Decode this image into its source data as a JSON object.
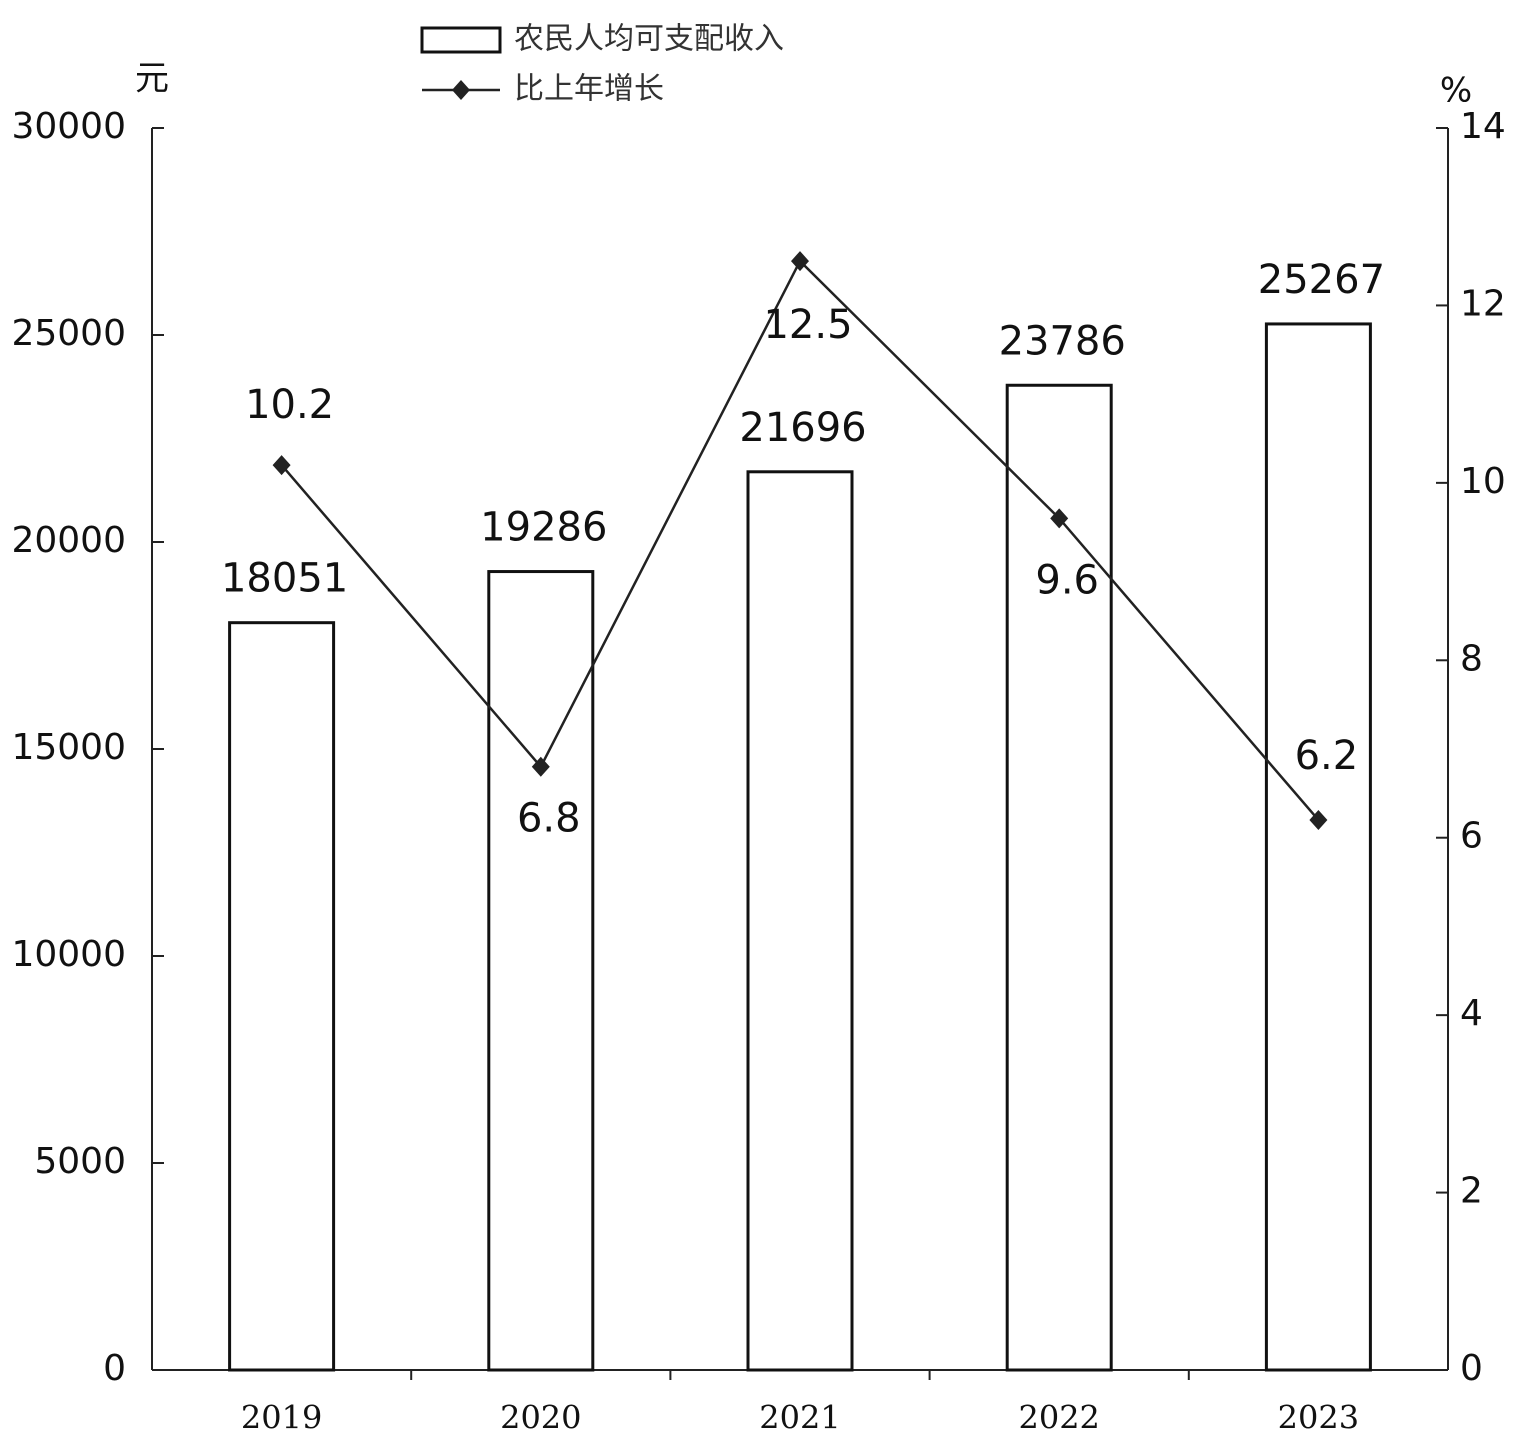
{
  "chart_data": {
    "type": "bar-line",
    "y_label": "元",
    "y2_label": "%",
    "categories": [
      "2019",
      "2020",
      "2021",
      "2022",
      "2023"
    ],
    "series": [
      {
        "name": "农民人均可支配收入",
        "type": "bar",
        "color": "#ffffff",
        "values": [
          18051,
          19286,
          21696,
          23786,
          25267
        ]
      },
      {
        "name": "比上年增长",
        "type": "line",
        "color": "#222222",
        "axis": "y2",
        "values": [
          10.2,
          6.8,
          12.5,
          9.6,
          6.2
        ]
      }
    ],
    "ylim": [
      0,
      30000
    ],
    "yticks": [
      0,
      5000,
      10000,
      15000,
      20000,
      25000,
      30000
    ],
    "y2lim": [
      0,
      14
    ],
    "y2ticks": [
      0,
      2,
      4,
      6,
      8,
      10,
      12,
      14
    ]
  }
}
